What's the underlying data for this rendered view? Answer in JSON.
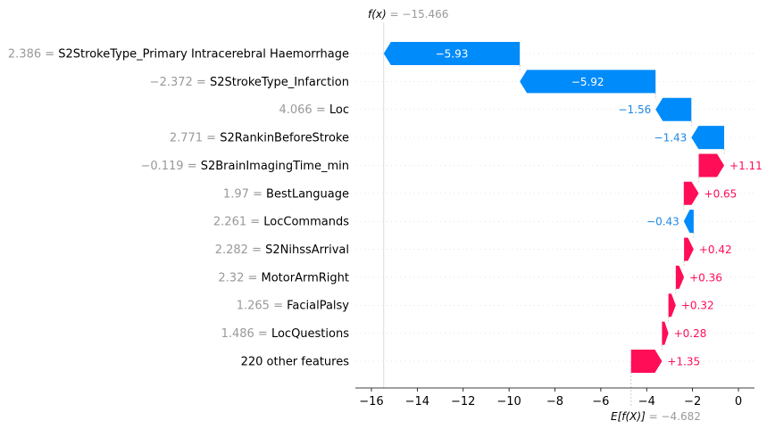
{
  "chart_data": {
    "type": "waterfall",
    "fx_label": "f(x)",
    "fx_value_text": " = −15.466",
    "fx": -15.466,
    "ex_label": "E[f(X)]",
    "ex_value_text": " = −4.682",
    "base_value": -4.682,
    "xlim": [
      -16.7,
      0.7
    ],
    "xticks": [
      -16,
      -14,
      -12,
      -10,
      -8,
      -6,
      -4,
      -2,
      0
    ],
    "xtick_labels": [
      "−16",
      "−14",
      "−12",
      "−10",
      "−8",
      "−6",
      "−4",
      "−2",
      "0"
    ],
    "colors": {
      "positive": "#ff0d57",
      "negative": "#008bfb",
      "negative_text": "#1e88e5",
      "value_text": "#999999"
    },
    "features": [
      {
        "value_text": "2.386",
        "name": "S2StrokeType_Primary Intracerebral Haemorrhage",
        "shap": -5.93,
        "label": "−5.93"
      },
      {
        "value_text": "−2.372",
        "name": "S2StrokeType_Infarction",
        "shap": -5.92,
        "label": "−5.92"
      },
      {
        "value_text": "4.066",
        "name": "Loc",
        "shap": -1.56,
        "label": "−1.56"
      },
      {
        "value_text": "2.771",
        "name": "S2RankinBeforeStroke",
        "shap": -1.43,
        "label": "−1.43"
      },
      {
        "value_text": "−0.119",
        "name": "S2BrainImagingTime_min",
        "shap": 1.11,
        "label": "+1.11"
      },
      {
        "value_text": "1.97",
        "name": "BestLanguage",
        "shap": 0.65,
        "label": "+0.65"
      },
      {
        "value_text": "2.261",
        "name": "LocCommands",
        "shap": -0.43,
        "label": "−0.43"
      },
      {
        "value_text": "2.282",
        "name": "S2NihssArrival",
        "shap": 0.42,
        "label": "+0.42"
      },
      {
        "value_text": "2.32",
        "name": "MotorArmRight",
        "shap": 0.36,
        "label": "+0.36"
      },
      {
        "value_text": "1.265",
        "name": "FacialPalsy",
        "shap": 0.32,
        "label": "+0.32"
      },
      {
        "value_text": "1.486",
        "name": "LocQuestions",
        "shap": 0.28,
        "label": "+0.28"
      },
      {
        "value_text": "",
        "name": "220 other features",
        "shap": 1.35,
        "label": "+1.35"
      }
    ]
  }
}
